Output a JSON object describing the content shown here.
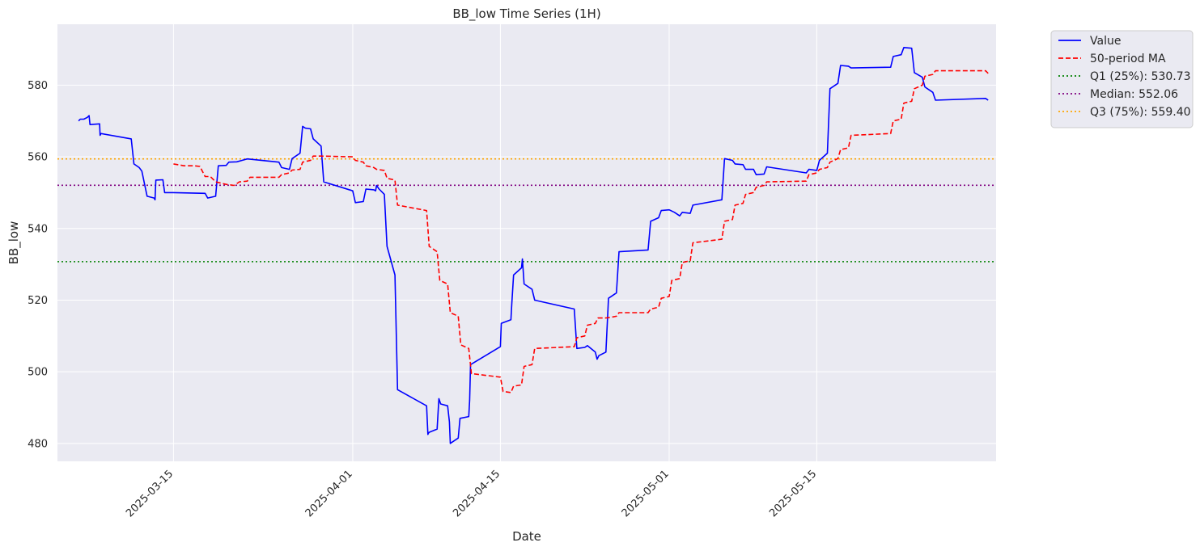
{
  "chart_data": {
    "type": "line",
    "title": "BB_low Time Series (1H)",
    "xlabel": "Date",
    "ylabel": "BB_low",
    "x_type": "date",
    "xlim": [
      "2025-03-04",
      "2025-06-01"
    ],
    "ylim": [
      475,
      597
    ],
    "x_ticks": [
      "2025-03-15",
      "2025-04-01",
      "2025-04-15",
      "2025-05-01",
      "2025-05-15"
    ],
    "y_ticks": [
      480,
      500,
      520,
      540,
      560,
      580
    ],
    "grid": true,
    "legend_position": "outside top-right",
    "colors": {
      "plot_background": "#eaeaf2",
      "grid": "#ffffff",
      "value": "#0000ff",
      "ma": "#ff0000",
      "q1": "#008000",
      "median": "#800080",
      "q3": "#ffa500"
    },
    "series": [
      {
        "name": "Value",
        "style": "solid",
        "points": [
          [
            "2025-03-06T00:00",
            570
          ],
          [
            "2025-03-06T04:00",
            570.5
          ],
          [
            "2025-03-06T12:00",
            570.5
          ],
          [
            "2025-03-06T20:00",
            571
          ],
          [
            "2025-03-07T00:00",
            571.5
          ],
          [
            "2025-03-07T02:00",
            569
          ],
          [
            "2025-03-08T00:00",
            569.2
          ],
          [
            "2025-03-08T01:00",
            566
          ],
          [
            "2025-03-08T03:00",
            566.5
          ],
          [
            "2025-03-11T00:00",
            565
          ],
          [
            "2025-03-11T06:00",
            558
          ],
          [
            "2025-03-11T18:00",
            557
          ],
          [
            "2025-03-12T00:00",
            556
          ],
          [
            "2025-03-12T12:00",
            549
          ],
          [
            "2025-03-13T04:00",
            548.5
          ],
          [
            "2025-03-13T06:00",
            548
          ],
          [
            "2025-03-13T08:00",
            553.5
          ],
          [
            "2025-03-14T00:00",
            553.6
          ],
          [
            "2025-03-14T04:00",
            550
          ],
          [
            "2025-03-15T00:00",
            550
          ],
          [
            "2025-03-18T00:00",
            549.8
          ],
          [
            "2025-03-18T06:00",
            548.5
          ],
          [
            "2025-03-19T00:00",
            549
          ],
          [
            "2025-03-19T06:00",
            557.5
          ],
          [
            "2025-03-20T00:00",
            557.6
          ],
          [
            "2025-03-20T06:00",
            558.5
          ],
          [
            "2025-03-21T00:00",
            558.6
          ],
          [
            "2025-03-21T12:00",
            559
          ],
          [
            "2025-03-22T00:00",
            559.4
          ],
          [
            "2025-03-25T00:00",
            558.5
          ],
          [
            "2025-03-25T06:00",
            557
          ],
          [
            "2025-03-26T00:00",
            556.5
          ],
          [
            "2025-03-26T06:00",
            559.5
          ],
          [
            "2025-03-26T12:00",
            560
          ],
          [
            "2025-03-27T00:00",
            561
          ],
          [
            "2025-03-27T06:00",
            568.5
          ],
          [
            "2025-03-27T12:00",
            568
          ],
          [
            "2025-03-28T00:00",
            567.8
          ],
          [
            "2025-03-28T06:00",
            565
          ],
          [
            "2025-03-29T00:00",
            563
          ],
          [
            "2025-03-29T06:00",
            553
          ],
          [
            "2025-04-01T00:00",
            550.5
          ],
          [
            "2025-04-01T06:00",
            547.2
          ],
          [
            "2025-04-02T00:00",
            547.5
          ],
          [
            "2025-04-02T06:00",
            551
          ],
          [
            "2025-04-03T00:00",
            550.8
          ],
          [
            "2025-04-03T04:00",
            550.5
          ],
          [
            "2025-04-03T06:00",
            552
          ],
          [
            "2025-04-03T12:00",
            551
          ],
          [
            "2025-04-04T00:00",
            549.5
          ],
          [
            "2025-04-04T06:00",
            535
          ],
          [
            "2025-04-05T00:00",
            527
          ],
          [
            "2025-04-05T04:00",
            505
          ],
          [
            "2025-04-05T06:00",
            495
          ],
          [
            "2025-04-08T00:00",
            490.5
          ],
          [
            "2025-04-08T03:00",
            482.5
          ],
          [
            "2025-04-08T05:00",
            483
          ],
          [
            "2025-04-08T08:00",
            483.2
          ],
          [
            "2025-04-09T00:00",
            484
          ],
          [
            "2025-04-09T04:00",
            492.5
          ],
          [
            "2025-04-09T08:00",
            491
          ],
          [
            "2025-04-10T00:00",
            490.5
          ],
          [
            "2025-04-10T04:00",
            486
          ],
          [
            "2025-04-10T06:00",
            480
          ],
          [
            "2025-04-11T00:00",
            481.5
          ],
          [
            "2025-04-11T04:00",
            487
          ],
          [
            "2025-04-12T00:00",
            487.5
          ],
          [
            "2025-04-12T02:00",
            492
          ],
          [
            "2025-04-12T04:00",
            502
          ],
          [
            "2025-04-15T00:00",
            507
          ],
          [
            "2025-04-15T02:00",
            513.5
          ],
          [
            "2025-04-16T00:00",
            514.5
          ],
          [
            "2025-04-16T02:00",
            519
          ],
          [
            "2025-04-16T06:00",
            527
          ],
          [
            "2025-04-17T00:00",
            529
          ],
          [
            "2025-04-17T02:00",
            531.5
          ],
          [
            "2025-04-17T06:00",
            524.5
          ],
          [
            "2025-04-18T00:00",
            523
          ],
          [
            "2025-04-18T06:00",
            520
          ],
          [
            "2025-04-22T00:00",
            517.5
          ],
          [
            "2025-04-22T06:00",
            506.5
          ],
          [
            "2025-04-23T00:00",
            506.8
          ],
          [
            "2025-04-23T06:00",
            507.3
          ],
          [
            "2025-04-24T00:00",
            505.5
          ],
          [
            "2025-04-24T04:00",
            503.5
          ],
          [
            "2025-04-24T08:00",
            504.5
          ],
          [
            "2025-04-25T00:00",
            505.5
          ],
          [
            "2025-04-25T06:00",
            520.5
          ],
          [
            "2025-04-26T00:00",
            522
          ],
          [
            "2025-04-26T06:00",
            533.5
          ],
          [
            "2025-04-29T00:00",
            534
          ],
          [
            "2025-04-29T06:00",
            542
          ],
          [
            "2025-04-30T00:00",
            543
          ],
          [
            "2025-04-30T06:00",
            545
          ],
          [
            "2025-05-01T00:00",
            545.2
          ],
          [
            "2025-05-01T12:00",
            544.5
          ],
          [
            "2025-05-02T00:00",
            543.5
          ],
          [
            "2025-05-02T06:00",
            544.5
          ],
          [
            "2025-05-03T00:00",
            544.2
          ],
          [
            "2025-05-03T06:00",
            546.5
          ],
          [
            "2025-05-06T00:00",
            548
          ],
          [
            "2025-05-06T06:00",
            559.5
          ],
          [
            "2025-05-07T00:00",
            559
          ],
          [
            "2025-05-07T06:00",
            558
          ],
          [
            "2025-05-08T00:00",
            557.8
          ],
          [
            "2025-05-08T06:00",
            556.5
          ],
          [
            "2025-05-09T00:00",
            556.5
          ],
          [
            "2025-05-09T06:00",
            555
          ],
          [
            "2025-05-10T00:00",
            555.2
          ],
          [
            "2025-05-10T06:00",
            557.2
          ],
          [
            "2025-05-14T00:00",
            555.5
          ],
          [
            "2025-05-14T06:00",
            556.5
          ],
          [
            "2025-05-15T00:00",
            556.2
          ],
          [
            "2025-05-15T06:00",
            559
          ],
          [
            "2025-05-16T00:00",
            561
          ],
          [
            "2025-05-16T06:00",
            579
          ],
          [
            "2025-05-17T00:00",
            580.5
          ],
          [
            "2025-05-17T06:00",
            585.5
          ],
          [
            "2025-05-18T00:00",
            585.3
          ],
          [
            "2025-05-18T06:00",
            584.8
          ],
          [
            "2025-05-22T00:00",
            585
          ],
          [
            "2025-05-22T06:00",
            588
          ],
          [
            "2025-05-23T00:00",
            588.5
          ],
          [
            "2025-05-23T06:00",
            590.5
          ],
          [
            "2025-05-24T00:00",
            590.3
          ],
          [
            "2025-05-24T06:00",
            583.5
          ],
          [
            "2025-05-25T00:00",
            582.2
          ],
          [
            "2025-05-25T06:00",
            579.5
          ],
          [
            "2025-05-26T00:00",
            578
          ],
          [
            "2025-05-26T06:00",
            575.8
          ],
          [
            "2025-05-31T00:00",
            576.3
          ],
          [
            "2025-05-31T06:00",
            575.8
          ]
        ]
      },
      {
        "name": "50-period MA",
        "style": "dashed",
        "points": [
          [
            "2025-03-15T00:00",
            558
          ],
          [
            "2025-03-16T00:00",
            557.5
          ],
          [
            "2025-03-17T00:00",
            557.5
          ],
          [
            "2025-03-17T12:00",
            557.3
          ],
          [
            "2025-03-18T00:00",
            554.5
          ],
          [
            "2025-03-18T12:00",
            554.5
          ],
          [
            "2025-03-19T00:00",
            553
          ],
          [
            "2025-03-20T00:00",
            552.3
          ],
          [
            "2025-03-20T18:00",
            552
          ],
          [
            "2025-03-21T06:00",
            553
          ],
          [
            "2025-03-22T00:00",
            553.2
          ],
          [
            "2025-03-22T06:00",
            554.3
          ],
          [
            "2025-03-25T00:00",
            554.3
          ],
          [
            "2025-03-25T06:00",
            555
          ],
          [
            "2025-03-26T00:00",
            555.5
          ],
          [
            "2025-03-26T06:00",
            556.3
          ],
          [
            "2025-03-27T00:00",
            556.5
          ],
          [
            "2025-03-27T06:00",
            558.5
          ],
          [
            "2025-03-28T00:00",
            559
          ],
          [
            "2025-03-28T06:00",
            560.2
          ],
          [
            "2025-03-29T00:00",
            560.2
          ],
          [
            "2025-04-01T00:00",
            560
          ],
          [
            "2025-04-01T06:00",
            559
          ],
          [
            "2025-04-02T00:00",
            558.5
          ],
          [
            "2025-04-02T06:00",
            557.5
          ],
          [
            "2025-04-03T00:00",
            557
          ],
          [
            "2025-04-03T06:00",
            556.5
          ],
          [
            "2025-04-04T00:00",
            556.2
          ],
          [
            "2025-04-04T06:00",
            554
          ],
          [
            "2025-04-05T00:00",
            553.5
          ],
          [
            "2025-04-05T06:00",
            546.5
          ],
          [
            "2025-04-08T00:00",
            545
          ],
          [
            "2025-04-08T06:00",
            535
          ],
          [
            "2025-04-09T00:00",
            533.5
          ],
          [
            "2025-04-09T06:00",
            525.5
          ],
          [
            "2025-04-10T00:00",
            524.5
          ],
          [
            "2025-04-10T06:00",
            516.5
          ],
          [
            "2025-04-11T00:00",
            515.5
          ],
          [
            "2025-04-11T06:00",
            507.5
          ],
          [
            "2025-04-12T00:00",
            506.5
          ],
          [
            "2025-04-12T06:00",
            499.5
          ],
          [
            "2025-04-15T00:00",
            498.5
          ],
          [
            "2025-04-15T06:00",
            494.5
          ],
          [
            "2025-04-16T00:00",
            494.2
          ],
          [
            "2025-04-16T06:00",
            496
          ],
          [
            "2025-04-17T00:00",
            496.3
          ],
          [
            "2025-04-17T06:00",
            501.5
          ],
          [
            "2025-04-18T00:00",
            502
          ],
          [
            "2025-04-18T06:00",
            506.5
          ],
          [
            "2025-04-22T00:00",
            507
          ],
          [
            "2025-04-22T06:00",
            509.5
          ],
          [
            "2025-04-23T00:00",
            510
          ],
          [
            "2025-04-23T06:00",
            513
          ],
          [
            "2025-04-24T00:00",
            513.5
          ],
          [
            "2025-04-24T06:00",
            515
          ],
          [
            "2025-04-25T00:00",
            515
          ],
          [
            "2025-04-25T12:00",
            515.2
          ],
          [
            "2025-04-26T00:00",
            515.5
          ],
          [
            "2025-04-26T06:00",
            516.5
          ],
          [
            "2025-04-29T00:00",
            516.5
          ],
          [
            "2025-04-29T06:00",
            517.5
          ],
          [
            "2025-04-30T00:00",
            518
          ],
          [
            "2025-04-30T06:00",
            520.5
          ],
          [
            "2025-05-01T00:00",
            521
          ],
          [
            "2025-05-01T06:00",
            525.5
          ],
          [
            "2025-05-02T00:00",
            526
          ],
          [
            "2025-05-02T06:00",
            530.5
          ],
          [
            "2025-05-03T00:00",
            531
          ],
          [
            "2025-05-03T06:00",
            536
          ],
          [
            "2025-05-06T00:00",
            537
          ],
          [
            "2025-05-06T06:00",
            542
          ],
          [
            "2025-05-07T00:00",
            542.5
          ],
          [
            "2025-05-07T06:00",
            546.5
          ],
          [
            "2025-05-08T00:00",
            547
          ],
          [
            "2025-05-08T06:00",
            549.5
          ],
          [
            "2025-05-09T00:00",
            550
          ],
          [
            "2025-05-09T06:00",
            551.5
          ],
          [
            "2025-05-10T00:00",
            552
          ],
          [
            "2025-05-10T06:00",
            553
          ],
          [
            "2025-05-14T00:00",
            553.2
          ],
          [
            "2025-05-14T06:00",
            555
          ],
          [
            "2025-05-15T00:00",
            555.5
          ],
          [
            "2025-05-15T06:00",
            556.5
          ],
          [
            "2025-05-16T00:00",
            557
          ],
          [
            "2025-05-16T06:00",
            558.5
          ],
          [
            "2025-05-17T00:00",
            559.5
          ],
          [
            "2025-05-17T06:00",
            562
          ],
          [
            "2025-05-18T00:00",
            562.5
          ],
          [
            "2025-05-18T06:00",
            566
          ],
          [
            "2025-05-22T00:00",
            566.5
          ],
          [
            "2025-05-22T06:00",
            570
          ],
          [
            "2025-05-23T00:00",
            570.5
          ],
          [
            "2025-05-23T06:00",
            575
          ],
          [
            "2025-05-24T00:00",
            575.5
          ],
          [
            "2025-05-24T06:00",
            579
          ],
          [
            "2025-05-25T00:00",
            580
          ],
          [
            "2025-05-25T06:00",
            582.5
          ],
          [
            "2025-05-26T00:00",
            583
          ],
          [
            "2025-05-26T06:00",
            584
          ],
          [
            "2025-05-31T00:00",
            584
          ],
          [
            "2025-05-31T06:00",
            583.3
          ]
        ]
      }
    ],
    "reference_lines": [
      {
        "label": "Q1 (25%): 530.73",
        "y": 530.73,
        "style": "dotted",
        "color": "#008000"
      },
      {
        "label": "Median: 552.06",
        "y": 552.06,
        "style": "dotted",
        "color": "#800080"
      },
      {
        "label": "Q3 (75%): 559.40",
        "y": 559.4,
        "style": "dotted",
        "color": "#ffa500"
      }
    ]
  }
}
